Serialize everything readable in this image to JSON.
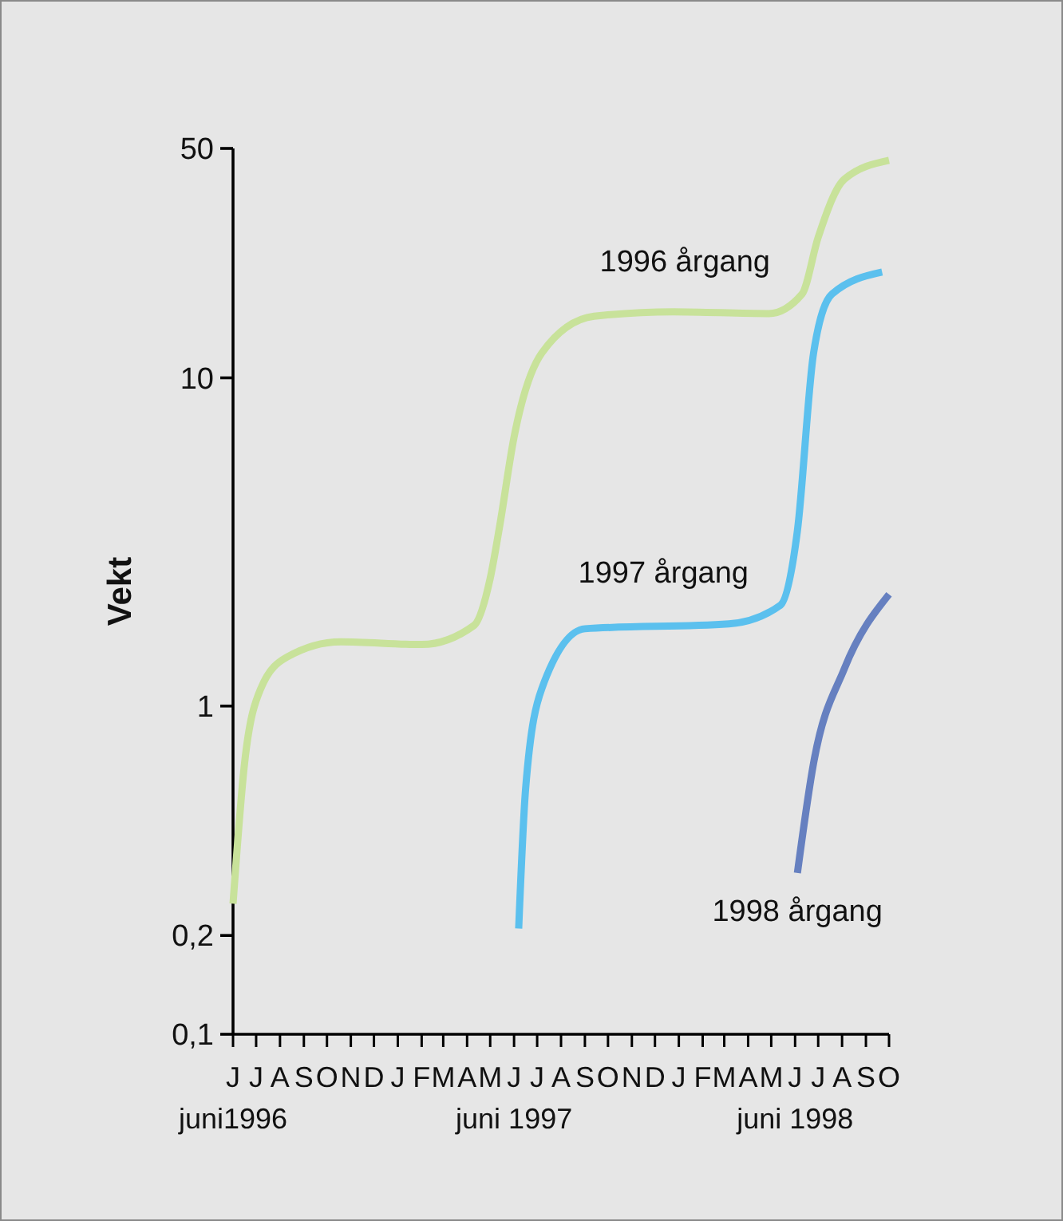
{
  "chart_data": {
    "type": "line",
    "ylabel": "Vekt",
    "log": true,
    "ylim": [
      0.1,
      50
    ],
    "yticks": [
      {
        "value": 0.1,
        "label": "0,1"
      },
      {
        "value": 0.2,
        "label": "0,2"
      },
      1,
      10,
      50
    ],
    "xlim": [
      "1996-06-01",
      "1998-10-01"
    ],
    "xticks": [
      {
        "value": "1996-06-01",
        "label": "J\njuni1996"
      },
      {
        "value": "1996-07-01",
        "label": "J"
      },
      {
        "value": "1996-08-01",
        "label": "A"
      },
      {
        "value": "1996-09-01",
        "label": "S"
      },
      {
        "value": "1996-10-01",
        "label": "O"
      },
      {
        "value": "1996-11-01",
        "label": "N"
      },
      {
        "value": "1996-12-01",
        "label": "D"
      },
      {
        "value": "1997-01-01",
        "label": "J"
      },
      {
        "value": "1997-02-01",
        "label": "F"
      },
      {
        "value": "1997-03-01",
        "label": "M"
      },
      {
        "value": "1997-04-01",
        "label": "A"
      },
      {
        "value": "1997-05-01",
        "label": "M"
      },
      {
        "value": "1997-06-01",
        "label": "J\njuni 1997"
      },
      {
        "value": "1997-07-01",
        "label": "J"
      },
      {
        "value": "1997-08-01",
        "label": "A"
      },
      {
        "value": "1997-09-01",
        "label": "S"
      },
      {
        "value": "1997-10-01",
        "label": "O"
      },
      {
        "value": "1997-11-01",
        "label": "N"
      },
      {
        "value": "1997-12-01",
        "label": "D"
      },
      {
        "value": "1998-01-01",
        "label": "J"
      },
      {
        "value": "1998-02-01",
        "label": "F"
      },
      {
        "value": "1998-03-01",
        "label": "M"
      },
      {
        "value": "1998-04-01",
        "label": "A"
      },
      {
        "value": "1998-05-01",
        "label": "M"
      },
      {
        "value": "1998-06-01",
        "label": "J\njuni 1998"
      },
      {
        "value": "1998-07-01",
        "label": "J"
      },
      {
        "value": "1998-08-01",
        "label": "A"
      },
      {
        "value": "1998-09-01",
        "label": "S"
      },
      {
        "value": "1998-10-01",
        "label": "O"
      }
    ],
    "series": [
      {
        "name": "1996 årgang",
        "color": "#c8e29a",
        "x": [
          "1996-06-01",
          "1996-06-16",
          "1996-07-07",
          "1996-08-10",
          "1996-10-19",
          "1997-02-01",
          "1997-04-10",
          "1997-05-01",
          "1997-05-13",
          "1997-06-01",
          "1997-07-07",
          "1997-09-13",
          "1997-12-25",
          "1998-04-28",
          "1998-06-10",
          "1998-07-01",
          "1998-08-04",
          "1998-10-01"
        ],
        "values": [
          0.25,
          0.67,
          1.13,
          1.41,
          1.57,
          1.54,
          1.76,
          2.45,
          3.5,
          6.6,
          11.9,
          15.4,
          15.9,
          15.7,
          18,
          26.8,
          40.3,
          46
        ]
      },
      {
        "name": "1997 årgang",
        "color": "#5bc0ee",
        "x": [
          "1997-06-07",
          "1997-06-16",
          "1997-07-07",
          "1997-09-01",
          "1998-03-07",
          "1998-05-13",
          "1998-06-04",
          "1998-06-25",
          "1998-07-19",
          "1998-09-22"
        ],
        "values": [
          0.21,
          0.56,
          1.13,
          1.72,
          1.78,
          2.03,
          3.42,
          11.9,
          18,
          21
        ]
      },
      {
        "name": "1998 årgang",
        "color": "#6680c0",
        "x": [
          "1998-06-04",
          "1998-06-25",
          "1998-08-04",
          "1998-10-01"
        ],
        "values": [
          0.31,
          0.67,
          1.3,
          2.19
        ]
      }
    ]
  }
}
